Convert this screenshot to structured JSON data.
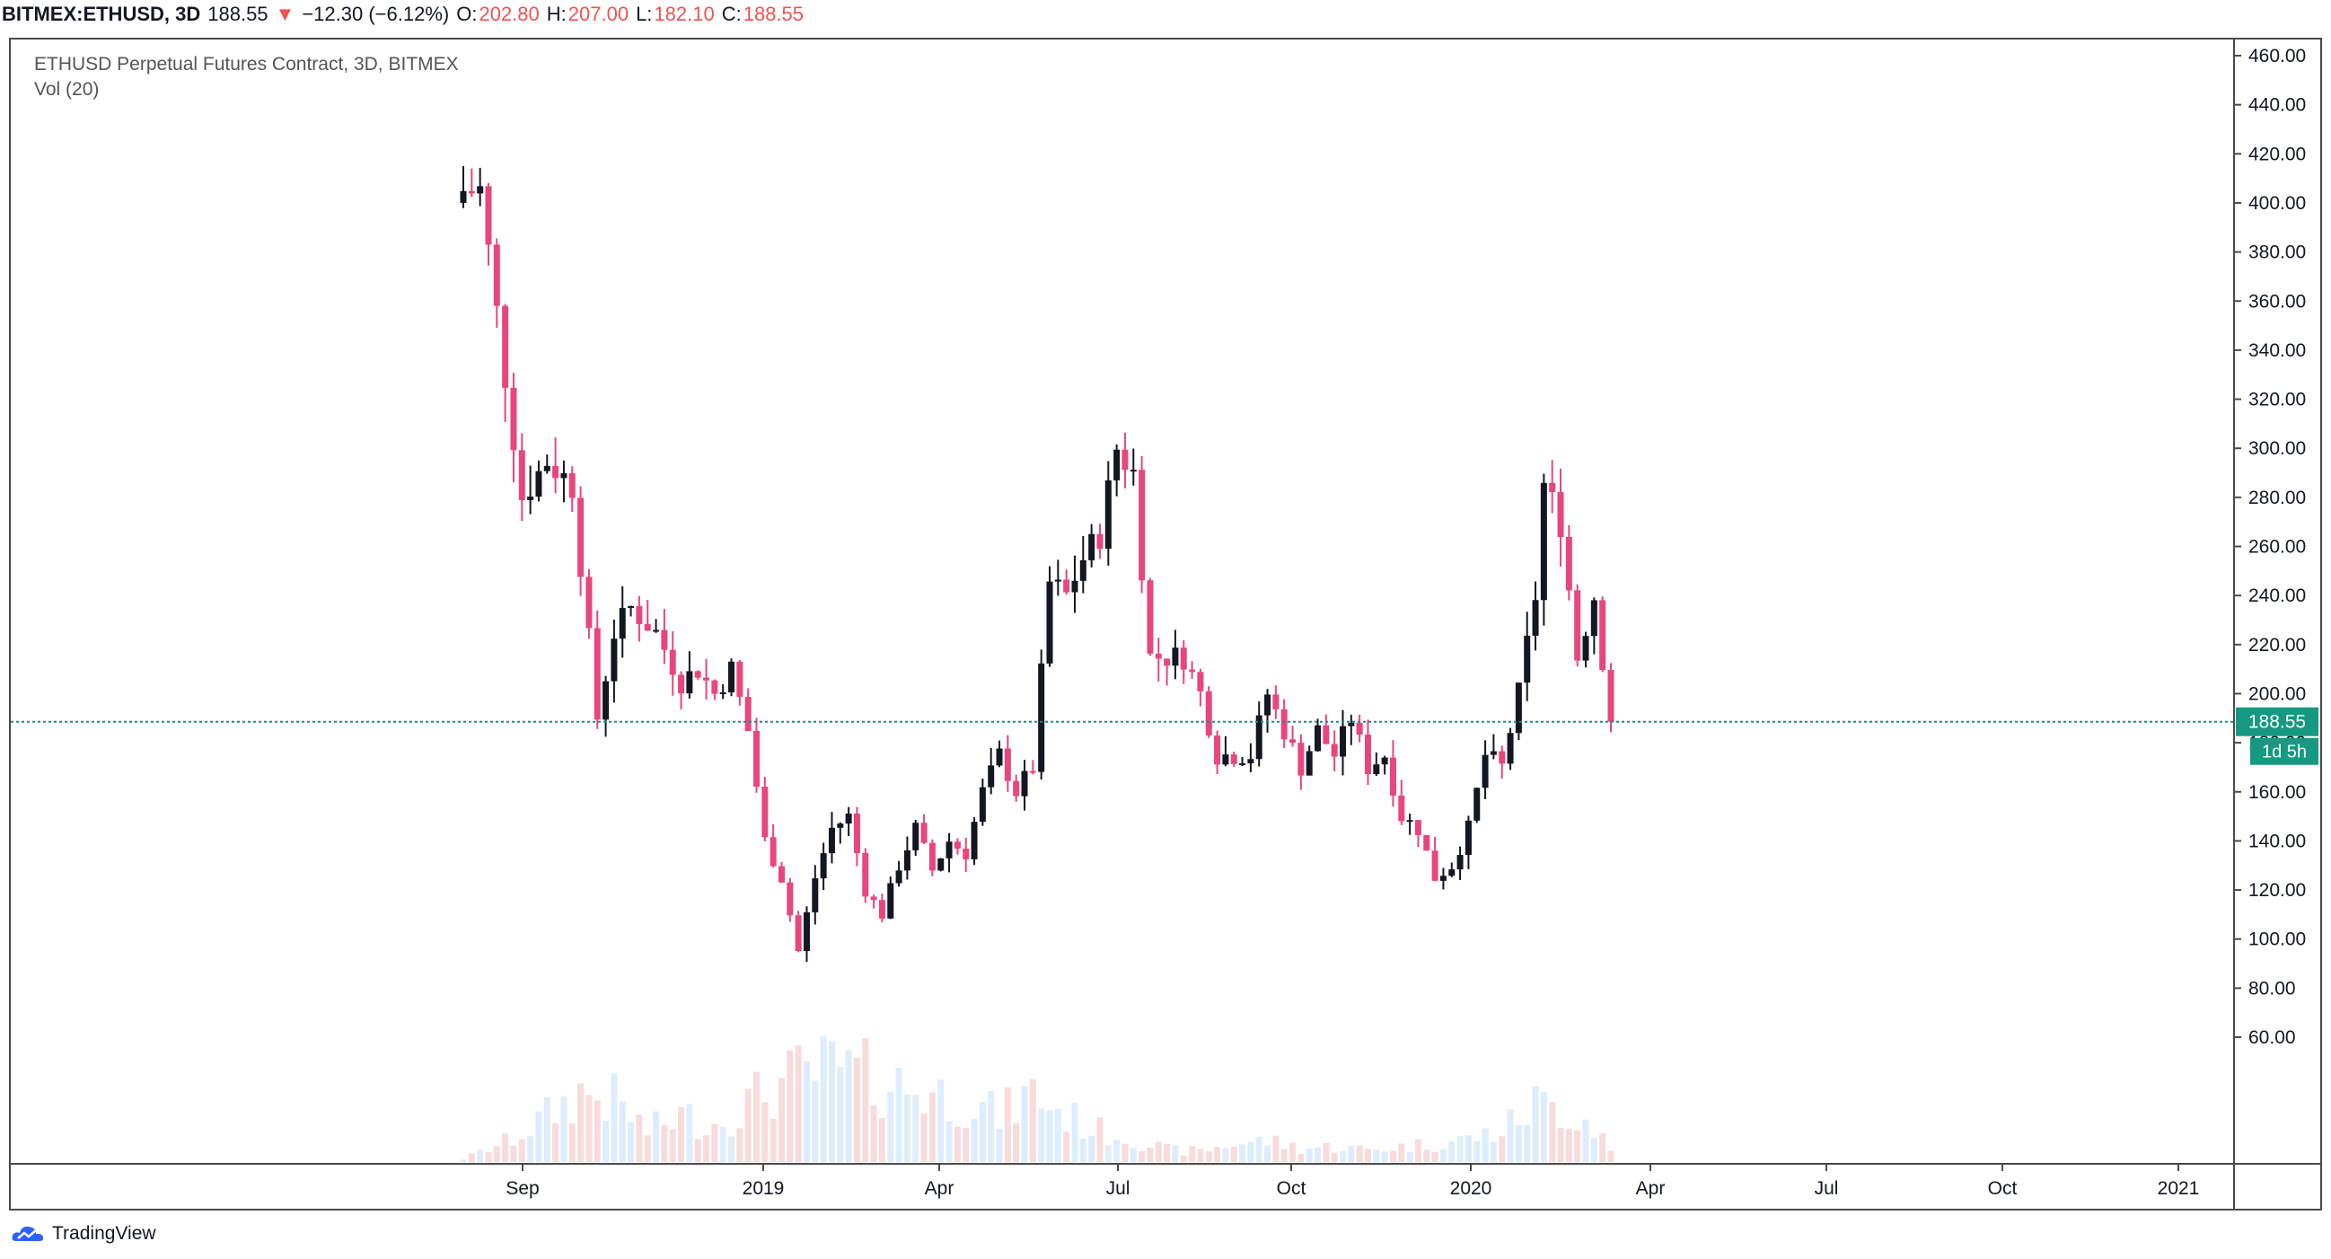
{
  "header": {
    "symbol": "BITMEX:ETHUSD, 3D",
    "price": "188.55",
    "change_arrow": "▼",
    "change": "−12.30 (−6.12%)",
    "o_label": "O:",
    "o_value": "202.80",
    "h_label": "H:",
    "h_value": "207.00",
    "l_label": "L:",
    "l_value": "182.10",
    "c_label": "C:",
    "c_value": "188.55"
  },
  "legend": {
    "title": "ETHUSD Perpetual Futures Contract, 3D, BITMEX",
    "volume": "Vol (20)"
  },
  "branding": {
    "logo_text": "TradingView"
  },
  "colors": {
    "up": "#131722",
    "down": "#e8467c",
    "price_line": "#1d8a88",
    "label_bg": "#159980"
  },
  "chart_data": {
    "type": "candlestick",
    "title": "ETHUSD Perpetual Futures Contract, 3D, BITMEX",
    "y_ticks": [
      60,
      80,
      100,
      120,
      140,
      160,
      180,
      200,
      220,
      240,
      260,
      280,
      300,
      320,
      340,
      360,
      380,
      400,
      420,
      440,
      460
    ],
    "y_tick_labels": [
      "60.00",
      "80.00",
      "100.00",
      "120.00",
      "140.00",
      "160.00",
      "180.00",
      "200.00",
      "220.00",
      "240.00",
      "260.00",
      "280.00",
      "300.00",
      "320.00",
      "340.00",
      "360.00",
      "380.00",
      "400.00",
      "420.00",
      "440.00",
      "460.00"
    ],
    "x_ticks": [
      "Sep",
      "2019",
      "Apr",
      "Jul",
      "Oct",
      "2020",
      "Apr",
      "Jul",
      "Oct",
      "2021"
    ],
    "ylim": [
      45,
      475
    ],
    "last_price": 188.55,
    "last_price_label": "188.55",
    "countdown_label": "1d 5h",
    "anchors": [
      [
        0,
        405
      ],
      [
        2,
        405
      ],
      [
        5,
        330
      ],
      [
        7,
        280
      ],
      [
        10,
        295
      ],
      [
        13,
        285
      ],
      [
        16,
        190
      ],
      [
        18,
        225
      ],
      [
        20,
        235
      ],
      [
        23,
        225
      ],
      [
        26,
        205
      ],
      [
        28,
        210
      ],
      [
        30,
        200
      ],
      [
        32,
        210
      ],
      [
        34,
        185
      ],
      [
        36,
        140
      ],
      [
        38,
        125
      ],
      [
        40,
        95
      ],
      [
        42,
        125
      ],
      [
        44,
        145
      ],
      [
        46,
        150
      ],
      [
        48,
        120
      ],
      [
        50,
        110
      ],
      [
        52,
        130
      ],
      [
        54,
        145
      ],
      [
        56,
        128
      ],
      [
        58,
        140
      ],
      [
        60,
        135
      ],
      [
        62,
        160
      ],
      [
        64,
        175
      ],
      [
        66,
        160
      ],
      [
        68,
        170
      ],
      [
        70,
        245
      ],
      [
        72,
        240
      ],
      [
        74,
        255
      ],
      [
        76,
        265
      ],
      [
        78,
        300
      ],
      [
        80,
        290
      ],
      [
        82,
        215
      ],
      [
        84,
        215
      ],
      [
        86,
        215
      ],
      [
        88,
        200
      ],
      [
        90,
        175
      ],
      [
        92,
        175
      ],
      [
        94,
        175
      ],
      [
        96,
        200
      ],
      [
        98,
        185
      ],
      [
        100,
        170
      ],
      [
        102,
        185
      ],
      [
        104,
        175
      ],
      [
        106,
        190
      ],
      [
        108,
        170
      ],
      [
        110,
        175
      ],
      [
        112,
        150
      ],
      [
        114,
        145
      ],
      [
        116,
        125
      ],
      [
        118,
        130
      ],
      [
        120,
        145
      ],
      [
        122,
        175
      ],
      [
        124,
        170
      ],
      [
        126,
        200
      ],
      [
        128,
        240
      ],
      [
        129,
        285
      ],
      [
        131,
        270
      ],
      [
        133,
        215
      ],
      [
        135,
        240
      ],
      [
        137,
        188.55
      ]
    ],
    "volume_anchors": [
      [
        0,
        2
      ],
      [
        6,
        15
      ],
      [
        10,
        30
      ],
      [
        14,
        45
      ],
      [
        18,
        40
      ],
      [
        22,
        20
      ],
      [
        26,
        30
      ],
      [
        30,
        25
      ],
      [
        36,
        45
      ],
      [
        40,
        55
      ],
      [
        44,
        60
      ],
      [
        48,
        55
      ],
      [
        52,
        50
      ],
      [
        56,
        45
      ],
      [
        60,
        40
      ],
      [
        64,
        30
      ],
      [
        68,
        45
      ],
      [
        72,
        30
      ],
      [
        76,
        20
      ],
      [
        80,
        15
      ],
      [
        84,
        8
      ],
      [
        88,
        7
      ],
      [
        92,
        12
      ],
      [
        96,
        14
      ],
      [
        100,
        9
      ],
      [
        104,
        10
      ],
      [
        108,
        8
      ],
      [
        112,
        10
      ],
      [
        116,
        12
      ],
      [
        120,
        15
      ],
      [
        124,
        20
      ],
      [
        128,
        38
      ],
      [
        131,
        35
      ],
      [
        134,
        28
      ],
      [
        137,
        12
      ]
    ]
  }
}
